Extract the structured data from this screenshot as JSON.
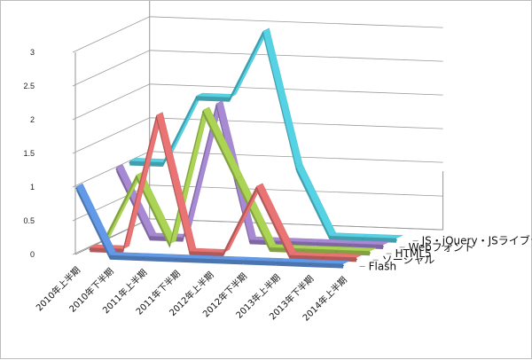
{
  "chart_data": {
    "type": "line",
    "style": "3d-ribbon",
    "categories": [
      "2010年上半期",
      "2010年下半期",
      "2011年上半期",
      "2011年下半期",
      "2012年上半期",
      "2012年下半期",
      "2013年上半期",
      "2013年下半期",
      "2014年上半期"
    ],
    "ylim": [
      0,
      3
    ],
    "yticks": [
      "0",
      "0.5",
      "1",
      "1.5",
      "2",
      "2.5",
      "3"
    ],
    "grid": true,
    "legend_placement": "right",
    "series": [
      {
        "name": "Flash",
        "color": "#5b8fd6",
        "values": [
          1,
          0,
          0,
          0,
          0,
          0,
          0,
          0,
          0
        ]
      },
      {
        "name": "ソーシャル",
        "color": "#d96b6b",
        "values": [
          0,
          0,
          2,
          0,
          0,
          1,
          0,
          0,
          0
        ]
      },
      {
        "name": "HTML5",
        "color": "#9ec44e",
        "values": [
          0,
          1,
          0,
          2,
          1,
          0,
          0,
          0,
          0
        ]
      },
      {
        "name": "Webフォント",
        "color": "#9b7fc4",
        "values": [
          1,
          0,
          0,
          2,
          0,
          0,
          0,
          0,
          0
        ]
      },
      {
        "name": "JS・jQuery・JSライブラリ",
        "color": "#4fc2d3",
        "values": [
          1,
          1,
          2,
          2,
          3,
          1,
          0,
          0,
          0
        ]
      }
    ]
  }
}
